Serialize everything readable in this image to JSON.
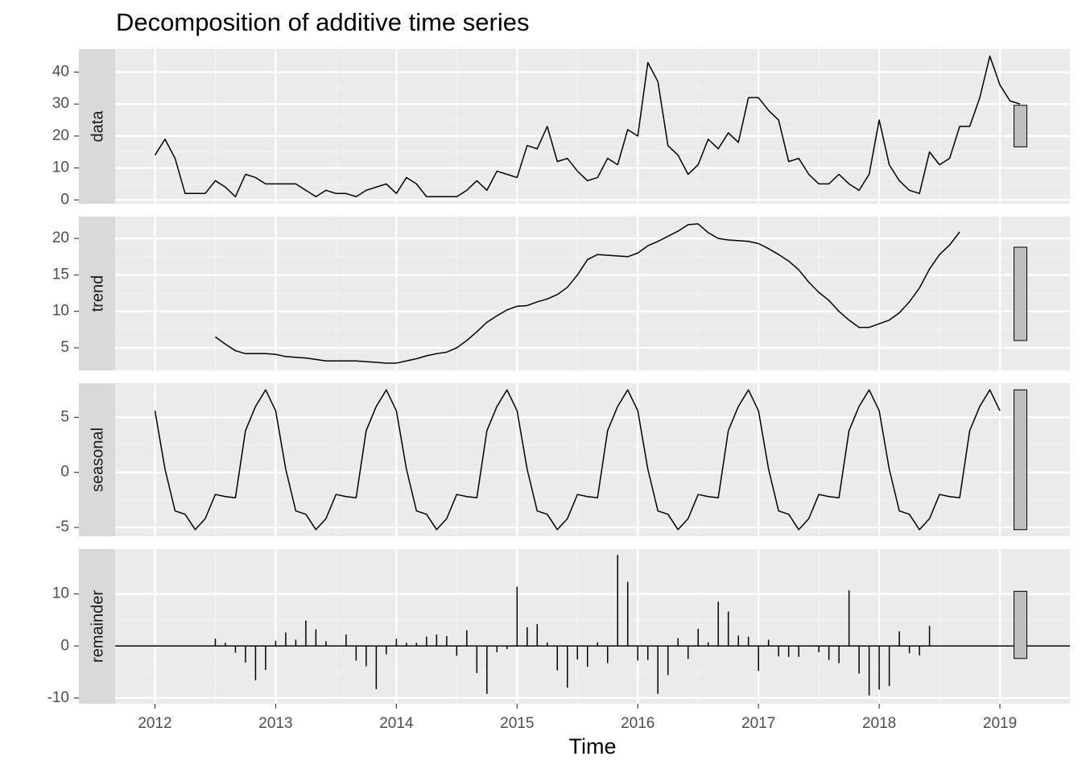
{
  "chart_data": {
    "type": "line",
    "title": "Decomposition of additive time series",
    "xlabel": "Time",
    "x_ticks": [
      "2012",
      "2013",
      "2014",
      "2015",
      "2016",
      "2017",
      "2018",
      "2019"
    ],
    "x_range": [
      2011.67,
      2019.58
    ],
    "grid": true,
    "legend": "none",
    "panel_background": "#ebebeb",
    "strip_background": "#d9d9d9",
    "scale_bar_color": "#bfbfbf",
    "line_color": "#000000",
    "panels": [
      {
        "name": "data",
        "kind": "line",
        "ylim": [
          -1.2,
          47.2
        ],
        "y_ticks": [
          0,
          10,
          20,
          30,
          40
        ],
        "y_tick_labels": [
          "0",
          "10",
          "20",
          "30",
          "40"
        ],
        "scale_bar": [
          16.6,
          29.6
        ],
        "start": 2012.0,
        "values": [
          14,
          19,
          13,
          2,
          2,
          2,
          6,
          4,
          1,
          8,
          7,
          5,
          5,
          5,
          5,
          3,
          1,
          3,
          2,
          2,
          1,
          3,
          4,
          5,
          2,
          7,
          5,
          1,
          1,
          1,
          1,
          3,
          6,
          3,
          9,
          8,
          7,
          17,
          16,
          23,
          12,
          13,
          9,
          6,
          7,
          13,
          11,
          22,
          20,
          43,
          37,
          17,
          14,
          8,
          11,
          19,
          16,
          21,
          18,
          32,
          32,
          28,
          25,
          12,
          13,
          8,
          5,
          5,
          8,
          5,
          3,
          8,
          25,
          11,
          6,
          3,
          2,
          15,
          11,
          13,
          23,
          23,
          32,
          45,
          36,
          31,
          30
        ]
      },
      {
        "name": "trend",
        "kind": "line",
        "ylim": [
          1.9,
          23.0
        ],
        "y_ticks": [
          5,
          10,
          15,
          20
        ],
        "y_tick_labels": [
          "5",
          "10",
          "15",
          "20"
        ],
        "scale_bar": [
          6.0,
          18.8
        ],
        "start": 2012.5,
        "values": [
          6.5,
          5.5,
          4.6,
          4.2,
          4.2,
          4.2,
          4.1,
          3.8,
          3.7,
          3.6,
          3.4,
          3.2,
          3.2,
          3.2,
          3.2,
          3.1,
          3.0,
          2.9,
          2.9,
          3.2,
          3.5,
          3.9,
          4.2,
          4.4,
          5.0,
          6.0,
          7.2,
          8.5,
          9.4,
          10.2,
          10.7,
          10.8,
          11.3,
          11.7,
          12.3,
          13.3,
          15.0,
          17.1,
          17.8,
          17.7,
          17.6,
          17.5,
          18.0,
          19.0,
          19.6,
          20.3,
          21.0,
          21.9,
          22.0,
          20.8,
          20.0,
          19.8,
          19.7,
          19.6,
          19.3,
          18.6,
          17.8,
          16.9,
          15.7,
          14.0,
          12.6,
          11.5,
          10.0,
          8.8,
          7.8,
          7.8,
          8.3,
          8.8,
          9.8,
          11.3,
          13.2,
          15.8,
          17.8,
          19.1,
          20.9
        ]
      },
      {
        "name": "seasonal",
        "kind": "line",
        "ylim": [
          -5.8,
          8.1
        ],
        "y_ticks": [
          -5,
          0,
          5
        ],
        "y_tick_labels": [
          "-5",
          "0",
          "5"
        ],
        "scale_bar": [
          -5.2,
          7.5
        ],
        "start": 2012.0,
        "cycle": [
          5.6,
          0.3,
          -3.5,
          -3.8,
          -5.2,
          -4.2,
          -2.0,
          -2.2,
          -2.3,
          3.8,
          6.0,
          7.5
        ],
        "n": 85
      },
      {
        "name": "remainder",
        "kind": "bar",
        "ylim": [
          -11.1,
          18.6
        ],
        "y_ticks": [
          -10,
          0,
          10
        ],
        "y_tick_labels": [
          "-10",
          "0",
          "10"
        ],
        "scale_bar": [
          -2.4,
          10.5
        ],
        "start": 2012.0,
        "values": [
          0,
          0,
          0,
          0,
          0,
          0,
          1.4,
          0.6,
          -1.3,
          -3.2,
          -6.6,
          -4.6,
          1.0,
          2.6,
          1.2,
          4.9,
          3.2,
          0.9,
          0,
          2.2,
          -2.8,
          -3.9,
          -8.3,
          -1.6,
          1.4,
          0.6,
          0.6,
          1.8,
          2.2,
          1.9,
          -1.9,
          3.0,
          -5.2,
          -9.2,
          -1.2,
          -0.6,
          11.4,
          3.6,
          4.2,
          0.7,
          -4.7,
          -8.0,
          -2.6,
          -4.0,
          0.7,
          -3.3,
          17.5,
          12.3,
          -2.8,
          -2.7,
          -9.2,
          -5.6,
          1.5,
          -2.5,
          3.3,
          0.7,
          8.5,
          6.6,
          2.0,
          1.8,
          -4.8,
          1.2,
          -2.0,
          -2.1,
          -2.1,
          0,
          -1.2,
          -2.7,
          -3.3,
          10.7,
          -5.3,
          -9.5,
          -8.4,
          -7.7,
          2.8,
          -1.4,
          -1.8,
          3.9
        ]
      }
    ]
  }
}
